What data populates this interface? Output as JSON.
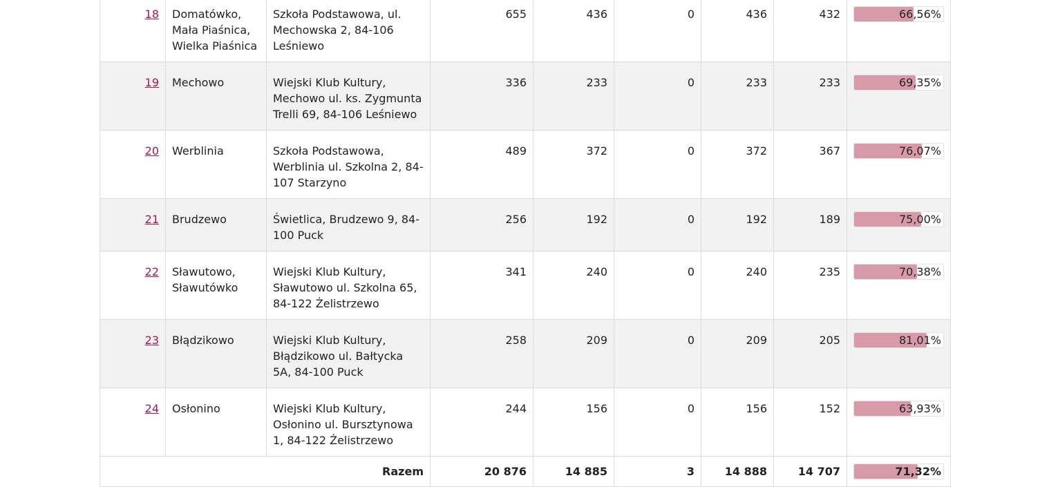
{
  "rows": [
    {
      "nr": "18",
      "place": "Domatówko, Mała Piaśnica, Wielka Piaśnica",
      "address": "Szkoła Podstawowa, ul. Mechowska 2, 84-106 Leśniewo",
      "c1": "655",
      "c2": "436",
      "c3": "0",
      "c4": "436",
      "c5": "432",
      "pct": "66,56%",
      "pct_value": 66.56
    },
    {
      "nr": "19",
      "place": "Mechowo",
      "address": "Wiejski Klub Kultury, Mechowo ul. ks. Zygmunta Trelli 69, 84-106 Leśniewo",
      "c1": "336",
      "c2": "233",
      "c3": "0",
      "c4": "233",
      "c5": "233",
      "pct": "69,35%",
      "pct_value": 69.35
    },
    {
      "nr": "20",
      "place": "Werblinia",
      "address": "Szkoła Podstawowa, Werblinia ul. Szkolna 2, 84-107 Starzyno",
      "c1": "489",
      "c2": "372",
      "c3": "0",
      "c4": "372",
      "c5": "367",
      "pct": "76,07%",
      "pct_value": 76.07
    },
    {
      "nr": "21",
      "place": "Brudzewo",
      "address": "Świetlica, Brudzewo 9, 84-100 Puck",
      "c1": "256",
      "c2": "192",
      "c3": "0",
      "c4": "192",
      "c5": "189",
      "pct": "75,00%",
      "pct_value": 75.0
    },
    {
      "nr": "22",
      "place": "Sławutowo, Sławutówko",
      "address": "Wiejski Klub Kultury, Sławutowo ul. Szkolna 65, 84-122 Żelistrzewo",
      "c1": "341",
      "c2": "240",
      "c3": "0",
      "c4": "240",
      "c5": "235",
      "pct": "70,38%",
      "pct_value": 70.38
    },
    {
      "nr": "23",
      "place": "Błądzikowo",
      "address": "Wiejski Klub Kultury, Błądzikowo ul. Bałtycka 5A, 84-100 Puck",
      "c1": "258",
      "c2": "209",
      "c3": "0",
      "c4": "209",
      "c5": "205",
      "pct": "81,01%",
      "pct_value": 81.01
    },
    {
      "nr": "24",
      "place": "Osłonino",
      "address": "Wiejski Klub Kultury, Osłonino ul. Bursztynowa 1, 84-122 Żelistrzewo",
      "c1": "244",
      "c2": "156",
      "c3": "0",
      "c4": "156",
      "c5": "152",
      "pct": "63,93%",
      "pct_value": 63.93
    }
  ],
  "total": {
    "label": "Razem",
    "c1": "20 876",
    "c2": "14 885",
    "c3": "3",
    "c4": "14 888",
    "c5": "14 707",
    "pct": "71,32%",
    "pct_value": 71.32
  },
  "colors": {
    "bar_fill": "#d89aa8",
    "link": "#b0154a",
    "alt_row": "#f2f2f2"
  }
}
